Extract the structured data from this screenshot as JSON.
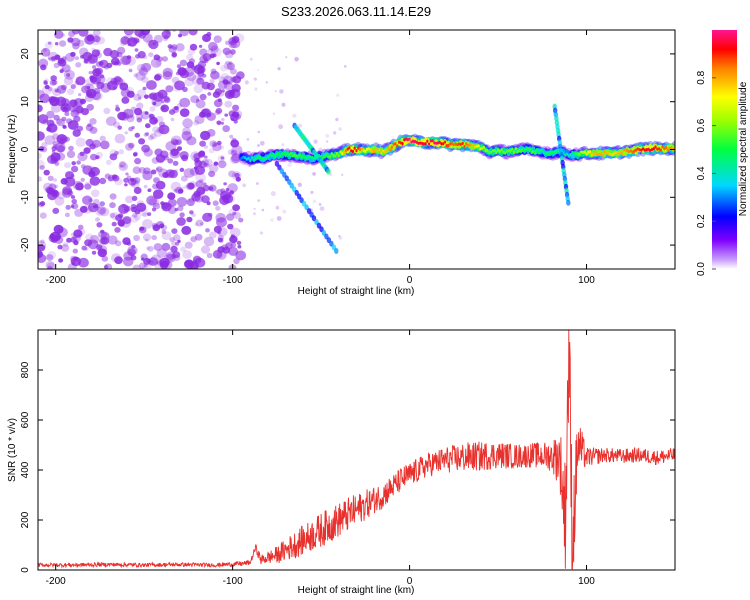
{
  "title": "S233.2026.063.11.14.E29",
  "colors": {
    "snr_line": "#e8302c",
    "low_band": "#8a2be2",
    "axis": "#000000"
  },
  "chart_data": [
    {
      "type": "heatmap",
      "name": "spectrogram",
      "xlabel": "Height of straight line (km)",
      "ylabel": "Frequency (Hz)",
      "xlim": [
        -210,
        150
      ],
      "ylim": [
        -25,
        25
      ],
      "xticks": [
        -200,
        -100,
        0,
        100
      ],
      "xtick_labels": [
        "-200",
        "-100",
        "0",
        "100"
      ],
      "yticks": [
        -20,
        -10,
        0,
        10,
        20
      ],
      "ytick_labels": [
        "-20",
        "-10",
        "0",
        "10",
        "20"
      ],
      "colorbar": {
        "label": "Normalized spectral amplitude",
        "range": [
          0,
          1
        ],
        "ticks": [
          0.0,
          0.2,
          0.4,
          0.6,
          0.8
        ],
        "tick_labels": [
          "0.0",
          "0.2",
          "0.4",
          "0.6",
          "0.8"
        ]
      },
      "ridge": {
        "x": [
          -95,
          -90,
          -85,
          -80,
          -75,
          -70,
          -65,
          -60,
          -55,
          -50,
          -45,
          -40,
          -35,
          -30,
          -25,
          -20,
          -15,
          -10,
          -5,
          0,
          5,
          10,
          15,
          20,
          25,
          30,
          35,
          40,
          45,
          50,
          55,
          60,
          65,
          70,
          75,
          80,
          85,
          90,
          95,
          100,
          105,
          110,
          115,
          120,
          125,
          130,
          135,
          140,
          145,
          150
        ],
        "freq": [
          -1.5,
          -2,
          -1.8,
          -1.5,
          -1.2,
          -1.0,
          -1.3,
          -1.5,
          -1.8,
          -1.5,
          -1.2,
          -1.0,
          0,
          0,
          -0.2,
          0,
          -0.5,
          0.5,
          1.5,
          2,
          1.5,
          1.5,
          1.5,
          1.2,
          1,
          1,
          0.8,
          0.5,
          -0.5,
          -0.3,
          -0.5,
          -0.2,
          0,
          -0.3,
          -0.5,
          -0.8,
          -0.5,
          -1,
          -1,
          -0.8,
          -0.8,
          -0.8,
          -0.8,
          -0.5,
          -0.3,
          0,
          0.2,
          0.2,
          0.2,
          0.2
        ],
        "amplitude": [
          0.3,
          0.4,
          0.5,
          0.45,
          0.5,
          0.5,
          0.55,
          0.5,
          0.45,
          0.5,
          0.55,
          0.6,
          0.9,
          0.95,
          0.7,
          0.8,
          0.75,
          0.85,
          0.9,
          1.0,
          0.95,
          0.95,
          0.98,
          0.9,
          0.85,
          0.9,
          0.8,
          0.7,
          0.55,
          0.6,
          0.55,
          0.6,
          0.5,
          0.55,
          0.45,
          0.5,
          0.45,
          0.4,
          0.55,
          0.7,
          0.8,
          0.8,
          0.75,
          0.8,
          0.85,
          0.9,
          0.95,
          0.9,
          0.85,
          0.8
        ]
      },
      "noise_region": {
        "x_range": [
          -210,
          -95
        ],
        "freq_range": [
          -25,
          25
        ],
        "amplitude": 0.05
      }
    },
    {
      "type": "line",
      "name": "snr",
      "xlabel": "Height of straight line (km)",
      "ylabel": "SNR (10 * v/v)",
      "xlim": [
        -210,
        150
      ],
      "ylim": [
        0,
        960
      ],
      "xticks": [
        -200,
        -100,
        0,
        100
      ],
      "xtick_labels": [
        "-200",
        "-100",
        "0",
        "100"
      ],
      "yticks": [
        0,
        200,
        400,
        600,
        800
      ],
      "ytick_labels": [
        "0",
        "200",
        "400",
        "600",
        "800"
      ],
      "series": [
        {
          "name": "SNR",
          "x": [
            -210,
            -190,
            -170,
            -150,
            -130,
            -110,
            -95,
            -90,
            -87,
            -84,
            -80,
            -75,
            -70,
            -65,
            -60,
            -55,
            -50,
            -45,
            -40,
            -35,
            -30,
            -25,
            -20,
            -15,
            -10,
            -5,
            0,
            5,
            10,
            15,
            20,
            25,
            30,
            40,
            50,
            60,
            70,
            80,
            85,
            88,
            90,
            92,
            95,
            100,
            110,
            120,
            130,
            140,
            150
          ],
          "values": [
            20,
            20,
            22,
            20,
            22,
            20,
            25,
            30,
            90,
            40,
            50,
            60,
            80,
            100,
            120,
            140,
            160,
            180,
            200,
            220,
            240,
            260,
            280,
            300,
            330,
            360,
            380,
            400,
            420,
            430,
            440,
            445,
            450,
            455,
            460,
            455,
            460,
            455,
            450,
            200,
            900,
            100,
            500,
            450,
            460,
            455,
            460,
            450,
            460
          ],
          "noise_amplitude": [
            8,
            8,
            8,
            8,
            8,
            8,
            10,
            10,
            15,
            20,
            25,
            35,
            45,
            55,
            60,
            65,
            70,
            70,
            70,
            70,
            65,
            60,
            55,
            55,
            50,
            50,
            50,
            50,
            50,
            50,
            55,
            55,
            60,
            60,
            55,
            50,
            50,
            60,
            120,
            250,
            300,
            250,
            120,
            40,
            30,
            30,
            30,
            30,
            30
          ]
        }
      ]
    }
  ]
}
